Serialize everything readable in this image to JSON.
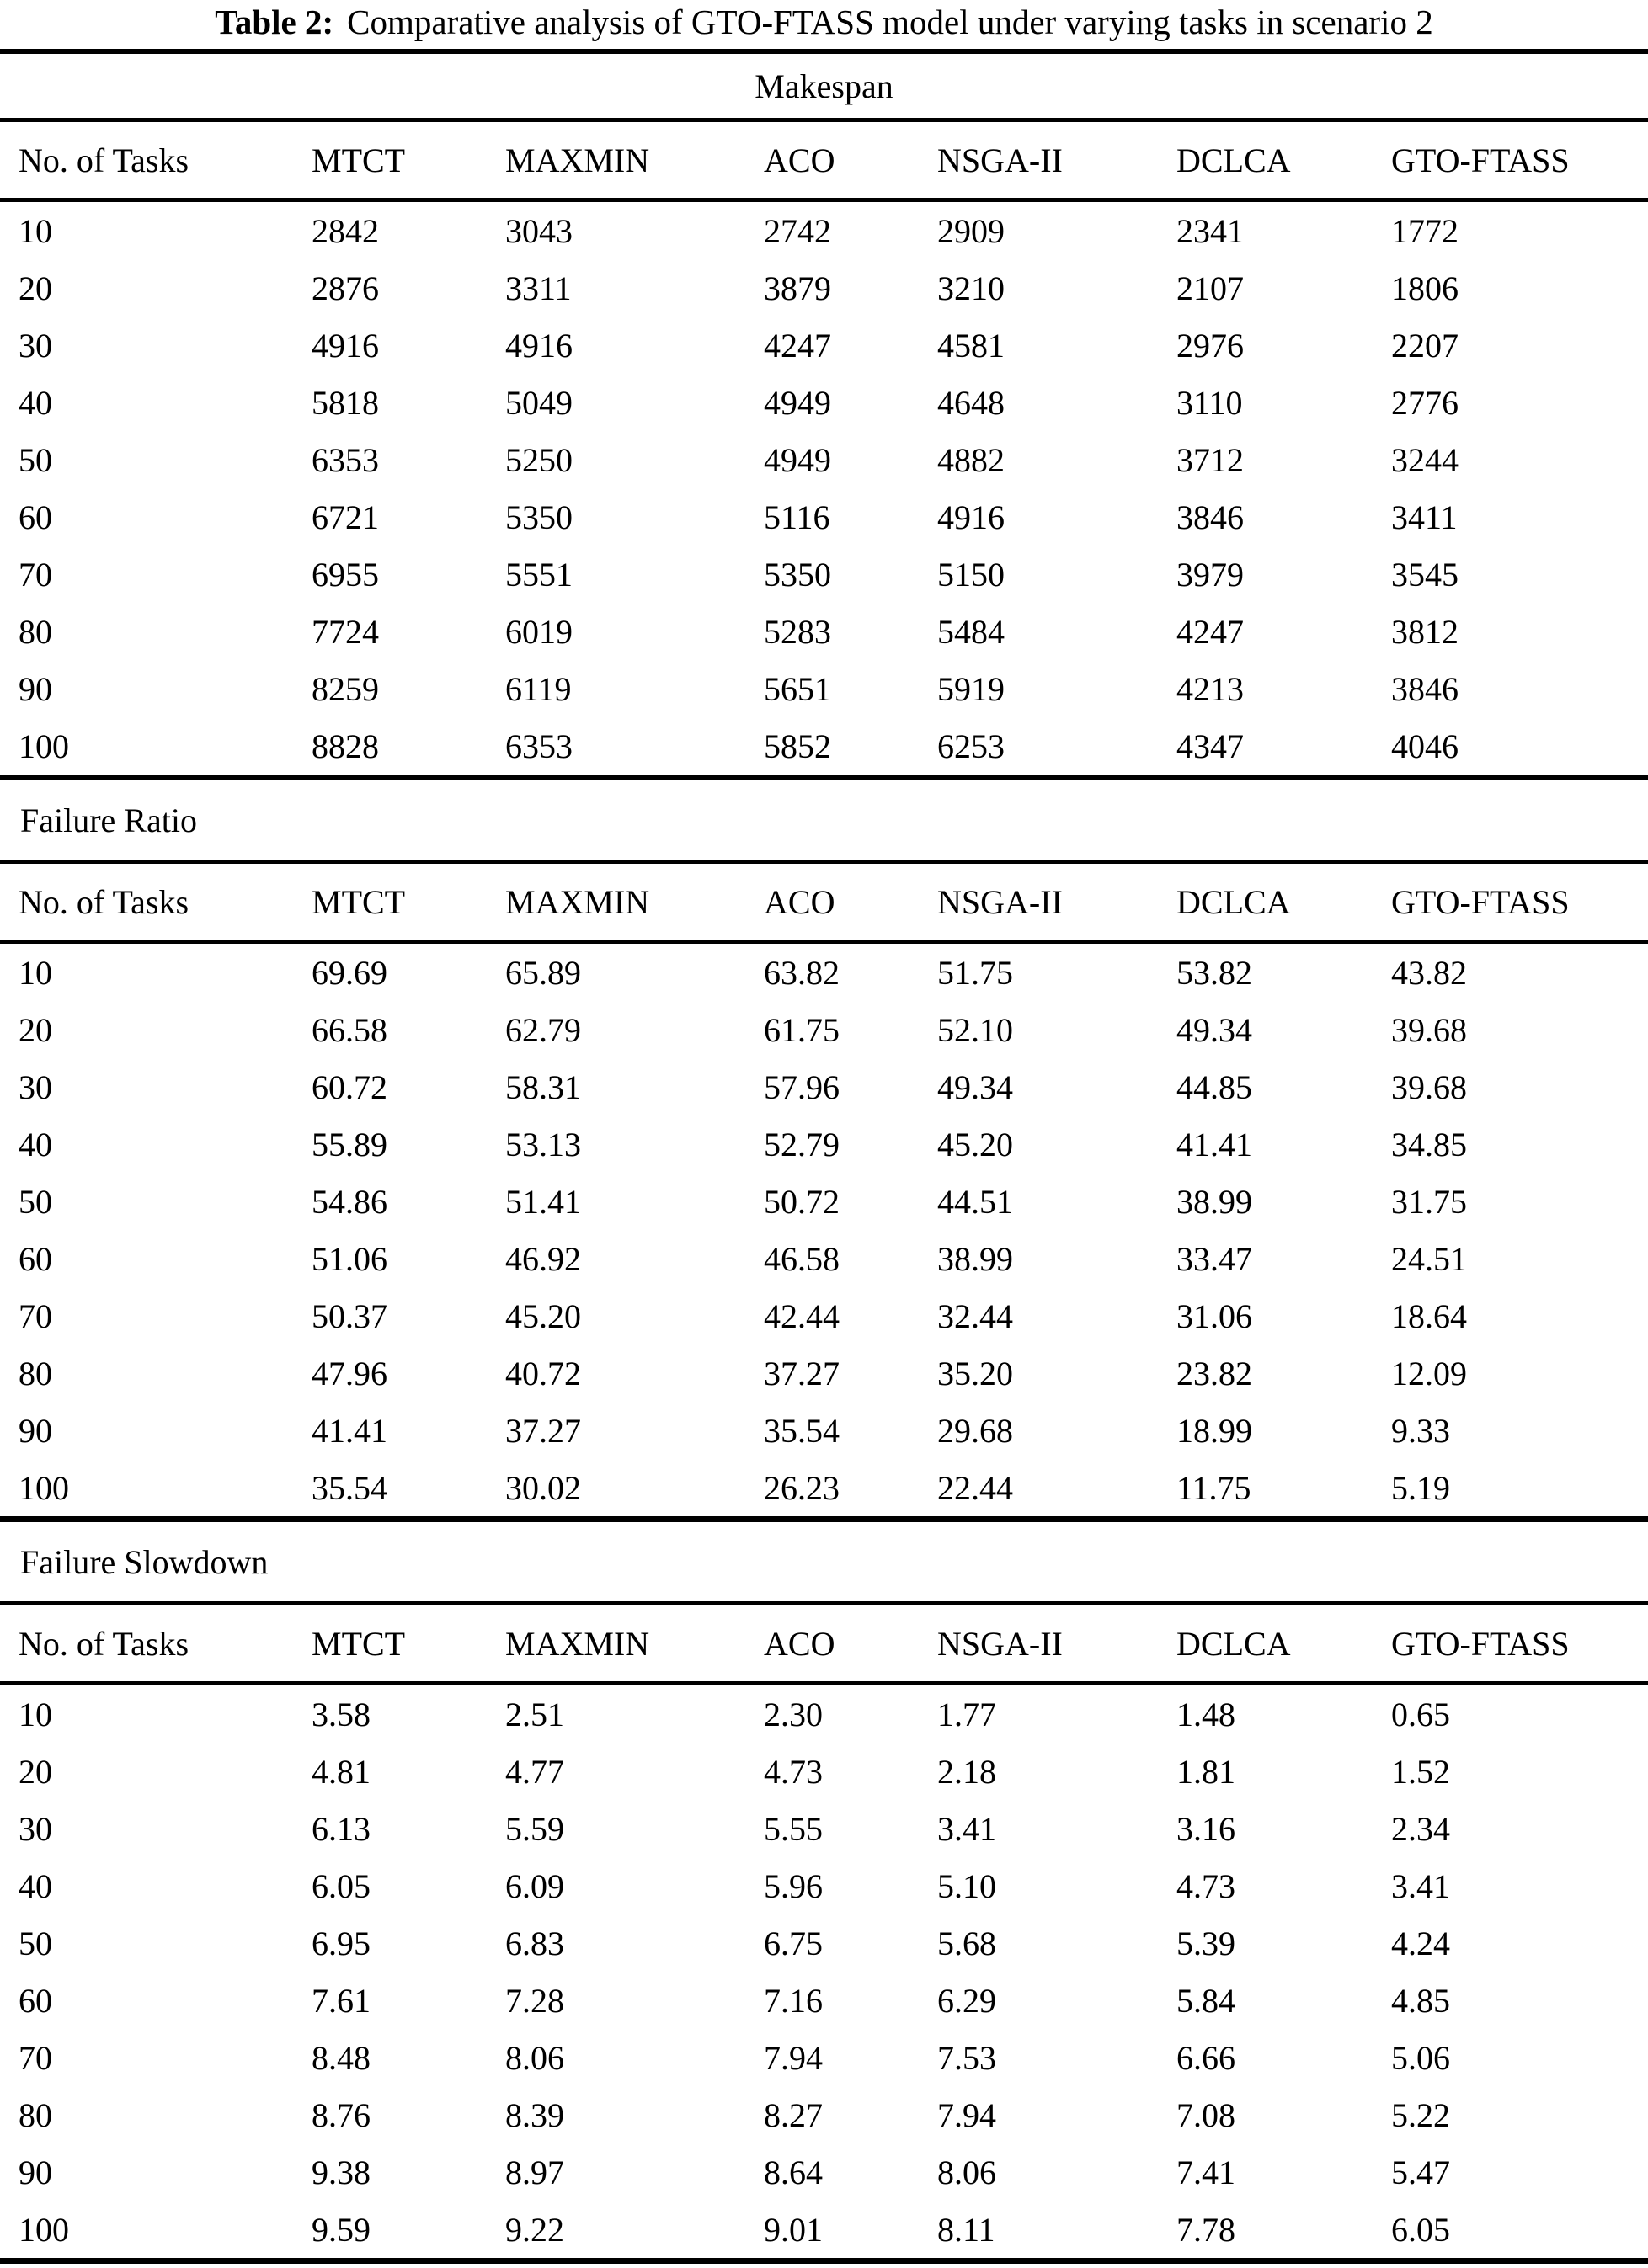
{
  "title": {
    "prefix": "Table 2:",
    "text": "Comparative analysis of GTO-FTASS model under varying tasks in scenario 2"
  },
  "columns": [
    "No. of Tasks",
    "MTCT",
    "MAXMIN",
    "ACO",
    "NSGA-II",
    "DCLCA",
    "GTO-FTASS"
  ],
  "sections": [
    {
      "name": "Makespan",
      "rows": [
        [
          "10",
          "2842",
          "3043",
          "2742",
          "2909",
          "2341",
          "1772"
        ],
        [
          "20",
          "2876",
          "3311",
          "3879",
          "3210",
          "2107",
          "1806"
        ],
        [
          "30",
          "4916",
          "4916",
          "4247",
          "4581",
          "2976",
          "2207"
        ],
        [
          "40",
          "5818",
          "5049",
          "4949",
          "4648",
          "3110",
          "2776"
        ],
        [
          "50",
          "6353",
          "5250",
          "4949",
          "4882",
          "3712",
          "3244"
        ],
        [
          "60",
          "6721",
          "5350",
          "5116",
          "4916",
          "3846",
          "3411"
        ],
        [
          "70",
          "6955",
          "5551",
          "5350",
          "5150",
          "3979",
          "3545"
        ],
        [
          "80",
          "7724",
          "6019",
          "5283",
          "5484",
          "4247",
          "3812"
        ],
        [
          "90",
          "8259",
          "6119",
          "5651",
          "5919",
          "4213",
          "3846"
        ],
        [
          "100",
          "8828",
          "6353",
          "5852",
          "6253",
          "4347",
          "4046"
        ]
      ]
    },
    {
      "name": "Failure Ratio",
      "rows": [
        [
          "10",
          "69.69",
          "65.89",
          "63.82",
          "51.75",
          "53.82",
          "43.82"
        ],
        [
          "20",
          "66.58",
          "62.79",
          "61.75",
          "52.10",
          "49.34",
          "39.68"
        ],
        [
          "30",
          "60.72",
          "58.31",
          "57.96",
          "49.34",
          "44.85",
          "39.68"
        ],
        [
          "40",
          "55.89",
          "53.13",
          "52.79",
          "45.20",
          "41.41",
          "34.85"
        ],
        [
          "50",
          "54.86",
          "51.41",
          "50.72",
          "44.51",
          "38.99",
          "31.75"
        ],
        [
          "60",
          "51.06",
          "46.92",
          "46.58",
          "38.99",
          "33.47",
          "24.51"
        ],
        [
          "70",
          "50.37",
          "45.20",
          "42.44",
          "32.44",
          "31.06",
          "18.64"
        ],
        [
          "80",
          "47.96",
          "40.72",
          "37.27",
          "35.20",
          "23.82",
          "12.09"
        ],
        [
          "90",
          "41.41",
          "37.27",
          "35.54",
          "29.68",
          "18.99",
          "9.33"
        ],
        [
          "100",
          "35.54",
          "30.02",
          "26.23",
          "22.44",
          "11.75",
          "5.19"
        ]
      ]
    },
    {
      "name": "Failure Slowdown",
      "rows": [
        [
          "10",
          "3.58",
          "2.51",
          "2.30",
          "1.77",
          "1.48",
          "0.65"
        ],
        [
          "20",
          "4.81",
          "4.77",
          "4.73",
          "2.18",
          "1.81",
          "1.52"
        ],
        [
          "30",
          "6.13",
          "5.59",
          "5.55",
          "3.41",
          "3.16",
          "2.34"
        ],
        [
          "40",
          "6.05",
          "6.09",
          "5.96",
          "5.10",
          "4.73",
          "3.41"
        ],
        [
          "50",
          "6.95",
          "6.83",
          "6.75",
          "5.68",
          "5.39",
          "4.24"
        ],
        [
          "60",
          "7.61",
          "7.28",
          "7.16",
          "6.29",
          "5.84",
          "4.85"
        ],
        [
          "70",
          "8.48",
          "8.06",
          "7.94",
          "7.53",
          "6.66",
          "5.06"
        ],
        [
          "80",
          "8.76",
          "8.39",
          "8.27",
          "7.94",
          "7.08",
          "5.22"
        ],
        [
          "90",
          "9.38",
          "8.97",
          "8.64",
          "8.06",
          "7.41",
          "5.47"
        ],
        [
          "100",
          "9.59",
          "9.22",
          "9.01",
          "8.11",
          "7.78",
          "6.05"
        ]
      ]
    }
  ]
}
